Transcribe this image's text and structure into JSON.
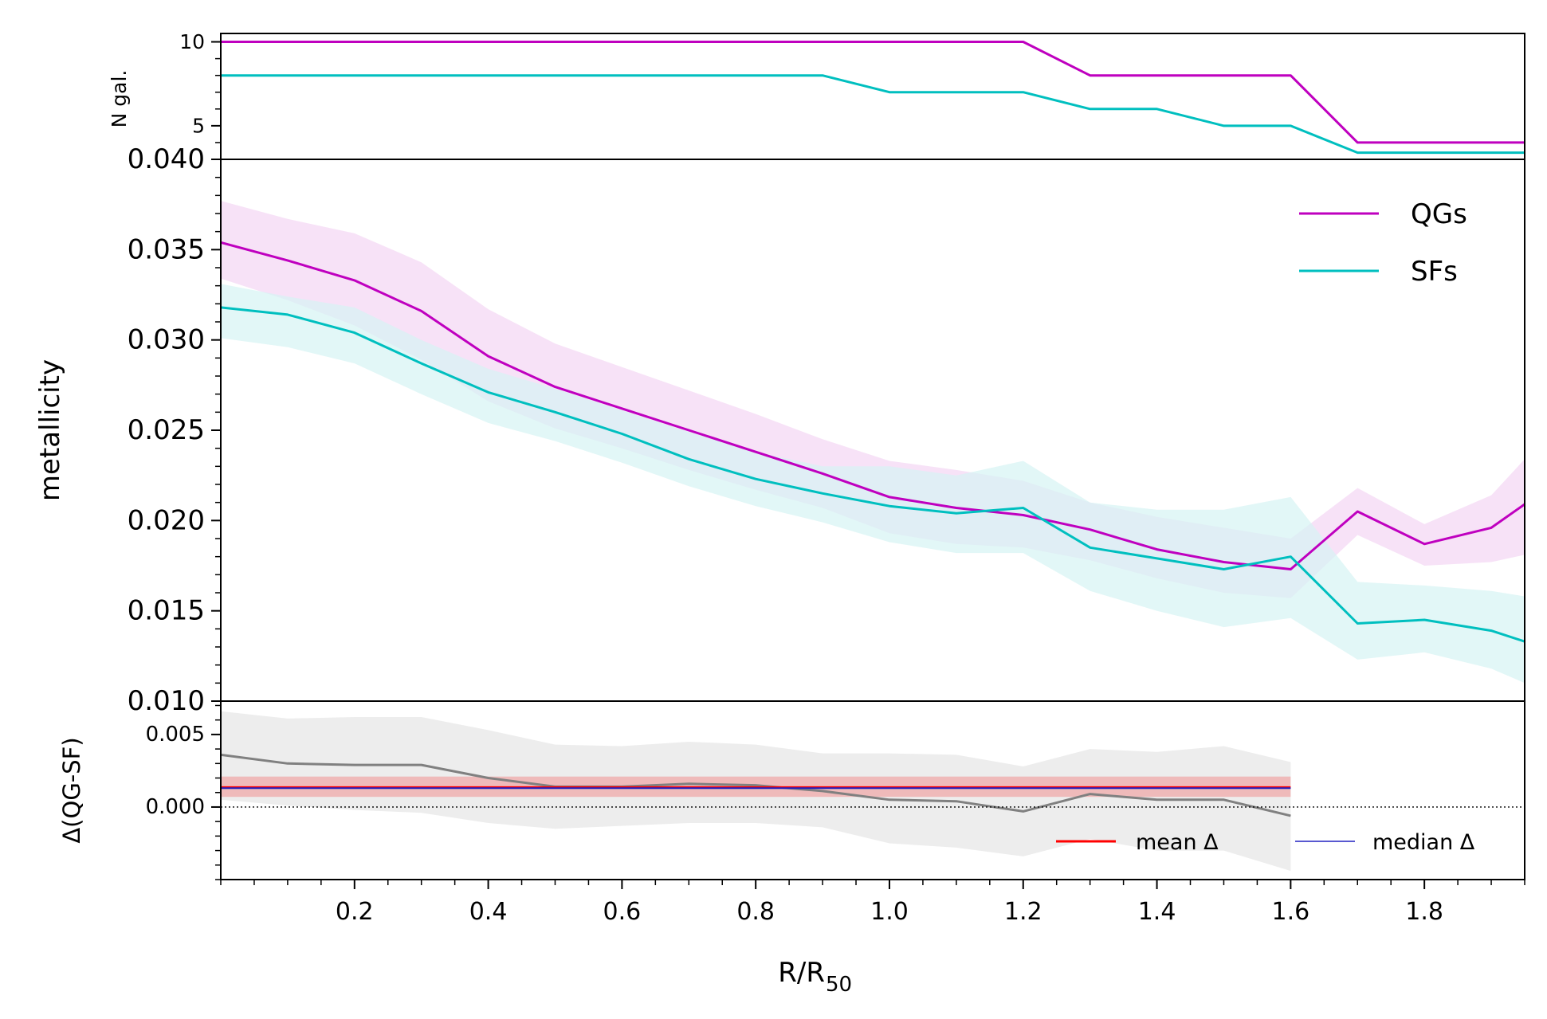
{
  "chart_data": [
    {
      "panel": "top",
      "type": "line",
      "ylabel": "N gal.",
      "ylim": [
        3,
        10.5
      ],
      "yticks": [
        5,
        10
      ],
      "ytick_labels": [
        "5",
        "10"
      ],
      "yminor": [
        4,
        6,
        7,
        8,
        9
      ],
      "series": [
        {
          "name": "QGs",
          "color": "#bf00bf",
          "x": [
            0,
            0.1,
            0.2,
            0.3,
            0.4,
            0.5,
            0.6,
            0.7,
            0.8,
            0.9,
            1.0,
            1.1,
            1.2,
            1.3,
            1.4,
            1.5,
            1.6,
            1.7,
            1.8,
            1.9,
            1.95
          ],
          "y": [
            10,
            10,
            10,
            10,
            10,
            10,
            10,
            10,
            10,
            10,
            10,
            10,
            10,
            8,
            8,
            8,
            8,
            4,
            4,
            4,
            4
          ]
        },
        {
          "name": "SFs",
          "color": "#00bfbf",
          "x": [
            0,
            0.1,
            0.2,
            0.3,
            0.4,
            0.5,
            0.6,
            0.7,
            0.8,
            0.9,
            1.0,
            1.1,
            1.2,
            1.3,
            1.4,
            1.5,
            1.6,
            1.7,
            1.8,
            1.9,
            1.95
          ],
          "y": [
            8,
            8,
            8,
            8,
            8,
            8,
            8,
            8,
            8,
            8,
            7,
            7,
            7,
            6,
            6,
            5,
            5,
            3.4,
            3.4,
            3.4,
            3.4
          ]
        }
      ]
    },
    {
      "panel": "middle",
      "type": "line",
      "ylabel": "metallicity",
      "ylim": [
        0.01,
        0.04
      ],
      "yticks": [
        0.01,
        0.015,
        0.02,
        0.025,
        0.03,
        0.035,
        0.04
      ],
      "ytick_labels": [
        "0.010",
        "0.015",
        "0.020",
        "0.025",
        "0.030",
        "0.035",
        "0.040"
      ],
      "yminor_step": 0.001,
      "legend": {
        "position": "top-right",
        "entries": [
          "QGs",
          "SFs"
        ]
      },
      "series": [
        {
          "name": "QGs",
          "color": "#bf00bf",
          "band_color": "#f3d5f3",
          "x": [
            0,
            0.1,
            0.2,
            0.3,
            0.4,
            0.5,
            0.6,
            0.7,
            0.8,
            0.9,
            1.0,
            1.1,
            1.2,
            1.3,
            1.4,
            1.5,
            1.6,
            1.7,
            1.8,
            1.9,
            1.95
          ],
          "y": [
            0.0354,
            0.0344,
            0.0333,
            0.0316,
            0.0291,
            0.0274,
            0.0262,
            0.025,
            0.0238,
            0.0226,
            0.0213,
            0.0207,
            0.0203,
            0.0195,
            0.0184,
            0.0177,
            0.0173,
            0.0205,
            0.0187,
            0.0196,
            0.0209
          ],
          "upper": [
            0.0377,
            0.0367,
            0.0359,
            0.0343,
            0.0317,
            0.0298,
            0.0285,
            0.0272,
            0.0259,
            0.0245,
            0.0233,
            0.0228,
            0.0222,
            0.021,
            0.0202,
            0.0196,
            0.019,
            0.0218,
            0.0198,
            0.0214,
            0.0234
          ],
          "lower": [
            0.0334,
            0.0322,
            0.0308,
            0.0289,
            0.0266,
            0.0251,
            0.024,
            0.0228,
            0.0217,
            0.0207,
            0.0193,
            0.0187,
            0.0185,
            0.0178,
            0.0168,
            0.016,
            0.0157,
            0.0192,
            0.0175,
            0.0177,
            0.0181
          ]
        },
        {
          "name": "SFs",
          "color": "#00bfbf",
          "band_color": "#d6f4f4",
          "x": [
            0,
            0.1,
            0.2,
            0.3,
            0.4,
            0.5,
            0.6,
            0.7,
            0.8,
            0.9,
            1.0,
            1.1,
            1.2,
            1.3,
            1.4,
            1.5,
            1.6,
            1.7,
            1.8,
            1.9,
            1.95
          ],
          "y": [
            0.0318,
            0.0314,
            0.0304,
            0.0287,
            0.0271,
            0.026,
            0.0248,
            0.0234,
            0.0223,
            0.0215,
            0.0208,
            0.0204,
            0.0207,
            0.0185,
            0.0179,
            0.0173,
            0.018,
            0.0143,
            0.0145,
            0.0139,
            0.0133
          ],
          "upper": [
            0.0331,
            0.0324,
            0.0318,
            0.03,
            0.0284,
            0.0273,
            0.0261,
            0.0249,
            0.0238,
            0.023,
            0.023,
            0.0225,
            0.0233,
            0.021,
            0.0206,
            0.0206,
            0.0213,
            0.0166,
            0.0164,
            0.0161,
            0.0158
          ],
          "lower": [
            0.0301,
            0.0296,
            0.0287,
            0.027,
            0.0254,
            0.0244,
            0.0232,
            0.0219,
            0.0208,
            0.0199,
            0.0188,
            0.0182,
            0.0182,
            0.0161,
            0.015,
            0.0141,
            0.0146,
            0.0123,
            0.0127,
            0.0118,
            0.011
          ]
        }
      ]
    },
    {
      "panel": "bottom",
      "type": "line",
      "ylabel": "Δ(QG-SF)",
      "ylim": [
        -0.005,
        0.0073
      ],
      "yticks": [
        0.0,
        0.005
      ],
      "ytick_labels": [
        "0.000",
        "0.005"
      ],
      "yminor_step": 0.001,
      "legend": {
        "position": "lower-right",
        "entries": [
          "mean Δ",
          "median Δ"
        ]
      },
      "series": [
        {
          "name": "Δ(QG-SF)",
          "color": "#808080",
          "band_color": "#e5e5e5",
          "x": [
            0,
            0.1,
            0.2,
            0.3,
            0.4,
            0.5,
            0.6,
            0.7,
            0.8,
            0.9,
            1.0,
            1.1,
            1.2,
            1.3,
            1.4,
            1.5,
            1.6
          ],
          "y": [
            0.0036,
            0.003,
            0.0029,
            0.0029,
            0.002,
            0.0014,
            0.0014,
            0.0016,
            0.0015,
            0.0011,
            0.0005,
            0.0004,
            -0.0003,
            0.0009,
            0.0005,
            0.0005,
            -0.0006
          ],
          "upper": [
            0.0066,
            0.0061,
            0.0062,
            0.0062,
            0.0053,
            0.0043,
            0.0042,
            0.0045,
            0.0043,
            0.0037,
            0.0037,
            0.0036,
            0.0028,
            0.004,
            0.0038,
            0.0042,
            0.0031
          ],
          "lower": [
            0.0005,
            0.0001,
            -0.0002,
            -0.0004,
            -0.0011,
            -0.0015,
            -0.0013,
            -0.0011,
            -0.0011,
            -0.0014,
            -0.0025,
            -0.0028,
            -0.0034,
            -0.0022,
            -0.003,
            -0.003,
            -0.0044
          ]
        },
        {
          "name": "mean Δ",
          "color": "#ff0000",
          "band_color": "#eeb0b0",
          "x": [
            0,
            1.6
          ],
          "value": 0.00135,
          "band": [
            0.0007,
            0.0021
          ]
        },
        {
          "name": "median Δ",
          "color": "#2020c0",
          "x": [
            0,
            1.6
          ],
          "value": 0.0013
        }
      ],
      "zero_line": {
        "value": 0,
        "style": "dotted"
      }
    }
  ],
  "xaxis": {
    "label_main": "R/R",
    "label_sub": "50",
    "xlim": [
      0,
      1.95
    ],
    "xticks": [
      0.2,
      0.4,
      0.6,
      0.8,
      1.0,
      1.2,
      1.4,
      1.6,
      1.8
    ],
    "xtick_labels": [
      "0.2",
      "0.4",
      "0.6",
      "0.8",
      "1.0",
      "1.2",
      "1.4",
      "1.6",
      "1.8"
    ],
    "xminor_step": 0.05
  },
  "colors": {
    "qg": "#bf00bf",
    "sf": "#00bfbf",
    "mean": "#ff0000",
    "median": "#2020c0",
    "delta": "#808080"
  }
}
